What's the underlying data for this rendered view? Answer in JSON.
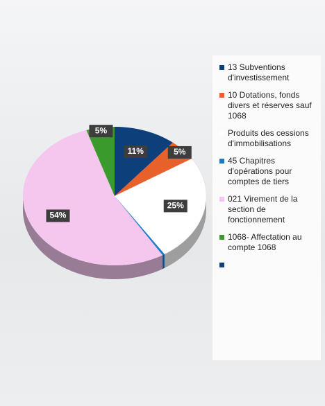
{
  "chart_data": {
    "type": "pie",
    "categories": [
      "13 Subventions d'investissement",
      "10 Dotations, fonds divers et réserves sauf 1068",
      "Produits des cessions d'immobilisations",
      "45 Chapitres d'opérations pour comptes de tiers",
      "021 Virement de la section de fonctionnement",
      "1068- Affectation au compte 1068",
      null
    ],
    "values": [
      11,
      5,
      25,
      0.4,
      54,
      5,
      0
    ],
    "value_labels": [
      "11%",
      "5%",
      "25%",
      null,
      "54%",
      "5%",
      null
    ],
    "colors": [
      "#0d3f7a",
      "#e8602a",
      "#ffffff",
      "#1a7ac8",
      "#f5c6ee",
      "#3b9a2c",
      "#0d3f7a"
    ]
  }
}
